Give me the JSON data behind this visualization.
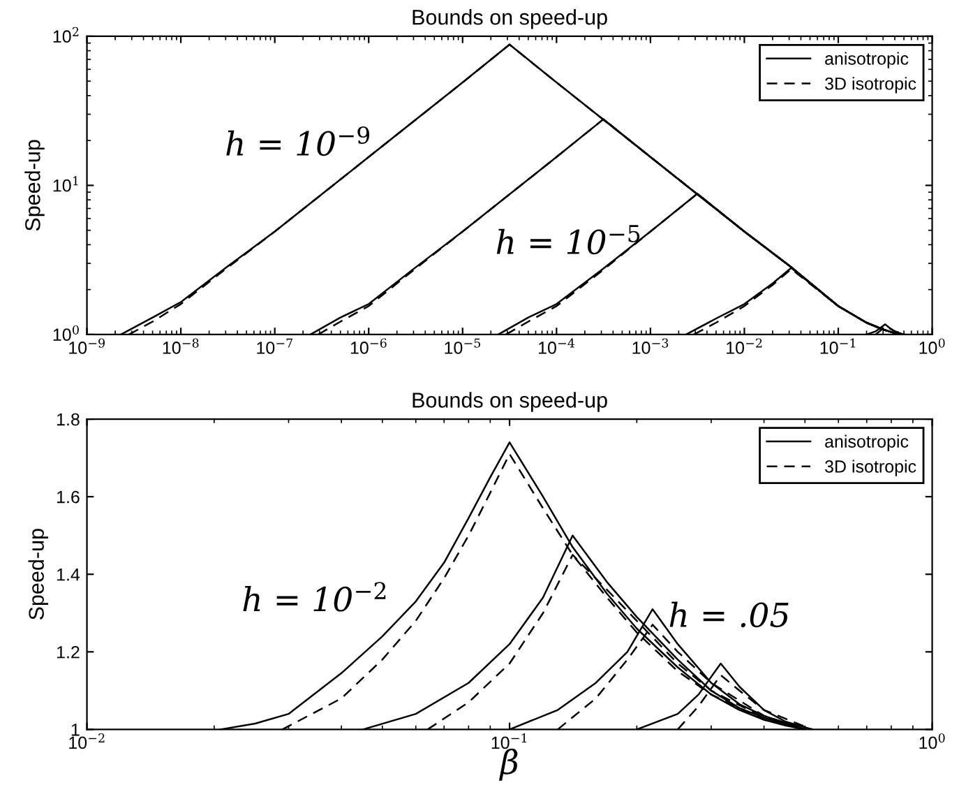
{
  "chart_data": [
    {
      "type": "line",
      "title": "Bounds on speed-up",
      "ylabel": "Speed-up",
      "log": "xy",
      "legend": "top right",
      "xlim": [
        1e-09,
        1
      ],
      "ylim": [
        1,
        100
      ],
      "xticks": [
        {
          "value": 1e-09,
          "label": "10$^{−9}$"
        },
        {
          "value": 1e-08,
          "label": "10$^{−8}$"
        },
        {
          "value": 1e-07,
          "label": "10$^{−7}$"
        },
        {
          "value": 1e-06,
          "label": "10$^{−6}$"
        },
        {
          "value": 1e-05,
          "label": "10$^{−5}$"
        },
        {
          "value": 0.0001,
          "label": "10$^{−4}$"
        },
        {
          "value": 0.001,
          "label": "10$^{−3}$"
        },
        {
          "value": 0.01,
          "label": "10$^{−2}$"
        },
        {
          "value": 0.1,
          "label": "10$^{−1}$"
        },
        {
          "value": 1,
          "label": "10$^{0}$"
        }
      ],
      "yticks": [
        {
          "value": 1,
          "label": "10$^{0}$"
        },
        {
          "value": 10,
          "label": "10$^{1}$"
        },
        {
          "value": 100,
          "label": "10$^{2}$"
        }
      ],
      "annotations": [
        "h = 10$^{−9}$",
        "h = 10$^{−5}$"
      ],
      "series": [
        {
          "name": "anisotropic",
          "color": "#000000",
          "line_style": "solid",
          "x": [
            2.3e-09,
            5e-09,
            1e-08,
            3e-08,
            1e-07,
            1e-06,
            1e-05,
            3.16e-05,
            0.0001,
            0.001,
            0.01,
            0.03,
            0.1,
            0.2,
            0.3,
            0.4,
            0.5
          ],
          "values": [
            1,
            1.3,
            1.65,
            2.8,
            4.9,
            15.5,
            49,
            88,
            49,
            15.5,
            4.9,
            2.9,
            1.55,
            1.2,
            1.08,
            1.02,
            1
          ]
        },
        {
          "name": "3D isotropic",
          "color": "#000000",
          "line_style": "dashed",
          "x": [
            2.8e-09,
            5e-09,
            1e-08,
            3e-08,
            1e-07,
            1e-06,
            1e-05,
            3.16e-05,
            0.0001,
            0.001,
            0.01,
            0.03,
            0.1,
            0.2,
            0.3,
            0.4,
            0.5
          ],
          "values": [
            1,
            1.22,
            1.6,
            2.75,
            4.9,
            15.5,
            49,
            88,
            49,
            15.5,
            4.9,
            2.9,
            1.55,
            1.2,
            1.08,
            1.02,
            1
          ]
        },
        {
          "color": "#000000",
          "line_style": "solid",
          "x": [
            2.4e-07,
            5e-07,
            1e-06,
            3e-06,
            1e-05,
            0.0001,
            0.000316,
            0.001,
            0.01,
            0.03,
            0.1,
            0.2,
            0.3,
            0.4,
            0.5
          ],
          "values": [
            1,
            1.3,
            1.6,
            2.75,
            4.9,
            15.5,
            27.8,
            15.5,
            4.9,
            2.9,
            1.55,
            1.2,
            1.08,
            1.02,
            1
          ]
        },
        {
          "color": "#000000",
          "line_style": "dashed",
          "x": [
            2.9e-07,
            5e-07,
            1e-06,
            3e-06,
            1e-05,
            0.0001,
            0.000316,
            0.001,
            0.01,
            0.03,
            0.1,
            0.2,
            0.3,
            0.4,
            0.5
          ],
          "values": [
            1,
            1.22,
            1.55,
            2.7,
            4.9,
            15.5,
            27.8,
            15.5,
            4.9,
            2.9,
            1.55,
            1.2,
            1.08,
            1.02,
            1
          ]
        },
        {
          "color": "#000000",
          "line_style": "solid",
          "x": [
            2.4e-05,
            5e-05,
            0.0001,
            0.0003,
            0.001,
            0.00316,
            0.01,
            0.03,
            0.1,
            0.2,
            0.3,
            0.4,
            0.5
          ],
          "values": [
            1,
            1.3,
            1.6,
            2.7,
            4.9,
            8.8,
            4.9,
            2.9,
            1.55,
            1.2,
            1.08,
            1.02,
            1
          ]
        },
        {
          "color": "#000000",
          "line_style": "dashed",
          "x": [
            2.9e-05,
            5e-05,
            0.0001,
            0.0003,
            0.001,
            0.00316,
            0.01,
            0.03,
            0.1,
            0.2,
            0.3,
            0.4,
            0.5
          ],
          "values": [
            1,
            1.22,
            1.55,
            2.65,
            4.9,
            8.8,
            4.9,
            2.9,
            1.55,
            1.2,
            1.08,
            1.02,
            1
          ]
        },
        {
          "color": "#000000",
          "line_style": "solid",
          "x": [
            0.0024,
            0.005,
            0.01,
            0.02,
            0.0316,
            0.1,
            0.2,
            0.3,
            0.4,
            0.5
          ],
          "values": [
            1,
            1.28,
            1.6,
            2.2,
            2.8,
            1.55,
            1.2,
            1.08,
            1.02,
            1
          ]
        },
        {
          "color": "#000000",
          "line_style": "dashed",
          "x": [
            0.0029,
            0.005,
            0.01,
            0.02,
            0.0316,
            0.1,
            0.2,
            0.3,
            0.4,
            0.5
          ],
          "values": [
            1,
            1.2,
            1.55,
            2.15,
            2.75,
            1.55,
            1.2,
            1.08,
            1.02,
            1
          ]
        },
        {
          "color": "#000000",
          "line_style": "solid",
          "x": [
            0.2,
            0.25,
            0.316,
            0.35,
            0.4,
            0.5
          ],
          "values": [
            1,
            1.05,
            1.17,
            1.11,
            1.05,
            1
          ]
        },
        {
          "color": "#000000",
          "line_style": "dashed",
          "x": [
            0.25,
            0.28,
            0.316,
            0.35,
            0.4,
            0.52
          ],
          "values": [
            1,
            1.06,
            1.14,
            1.1,
            1.05,
            1
          ]
        }
      ]
    },
    {
      "type": "line",
      "title": "Bounds on speed-up",
      "ylabel": "Speed-up",
      "xlabel": "β",
      "log": "x",
      "legend": "top right",
      "xlim": [
        0.01,
        1
      ],
      "ylim": [
        1,
        1.8
      ],
      "xticks": [
        {
          "value": 0.01,
          "label": "10$^{−2}$"
        },
        {
          "value": 0.1,
          "label": "10$^{−1}$"
        },
        {
          "value": 1,
          "label": "10$^{0}$"
        }
      ],
      "yticks": [
        1,
        1.2,
        1.4,
        1.6,
        1.8
      ],
      "annotations": [
        "h = 10$^{−2}$",
        "h = .05"
      ],
      "series": [
        {
          "name": "anisotropic",
          "color": "#000000",
          "line_style": "solid",
          "x": [
            0.0207,
            0.025,
            0.03,
            0.04,
            0.05,
            0.06,
            0.07,
            0.08,
            0.09,
            0.1,
            0.12,
            0.141,
            0.17,
            0.2,
            0.25,
            0.3,
            0.35,
            0.4,
            0.45,
            0.5
          ],
          "values": [
            1,
            1.015,
            1.04,
            1.145,
            1.24,
            1.33,
            1.43,
            1.545,
            1.65,
            1.74,
            1.6,
            1.47,
            1.35,
            1.26,
            1.16,
            1.09,
            1.05,
            1.025,
            1.01,
            1
          ]
        },
        {
          "name": "3D isotropic",
          "color": "#000000",
          "line_style": "dashed",
          "x": [
            0.029,
            0.04,
            0.05,
            0.06,
            0.07,
            0.08,
            0.09,
            0.1,
            0.12,
            0.141,
            0.17,
            0.2,
            0.25,
            0.3,
            0.4,
            0.5
          ],
          "values": [
            1,
            1.08,
            1.18,
            1.28,
            1.39,
            1.5,
            1.61,
            1.71,
            1.57,
            1.45,
            1.34,
            1.25,
            1.15,
            1.09,
            1.025,
            1
          ]
        },
        {
          "color": "#000000",
          "line_style": "solid",
          "x": [
            0.045,
            0.06,
            0.08,
            0.1,
            0.12,
            0.141,
            0.17,
            0.2,
            0.25,
            0.3,
            0.35,
            0.4,
            0.5
          ],
          "values": [
            1,
            1.04,
            1.12,
            1.22,
            1.34,
            1.5,
            1.38,
            1.29,
            1.18,
            1.1,
            1.055,
            1.03,
            1
          ]
        },
        {
          "color": "#000000",
          "line_style": "dashed",
          "x": [
            0.064,
            0.08,
            0.1,
            0.12,
            0.141,
            0.17,
            0.2,
            0.25,
            0.3,
            0.4,
            0.5
          ],
          "values": [
            1,
            1.07,
            1.17,
            1.3,
            1.45,
            1.36,
            1.28,
            1.17,
            1.1,
            1.03,
            1
          ]
        },
        {
          "color": "#000000",
          "line_style": "solid",
          "x": [
            0.1,
            0.13,
            0.16,
            0.19,
            0.218,
            0.25,
            0.3,
            0.35,
            0.4,
            0.5
          ],
          "values": [
            1,
            1.05,
            1.12,
            1.2,
            1.31,
            1.22,
            1.12,
            1.065,
            1.035,
            1
          ]
        },
        {
          "color": "#000000",
          "line_style": "dashed",
          "x": [
            0.13,
            0.16,
            0.19,
            0.218,
            0.25,
            0.3,
            0.4,
            0.5
          ],
          "values": [
            1,
            1.08,
            1.18,
            1.27,
            1.2,
            1.12,
            1.035,
            1
          ]
        },
        {
          "color": "#000000",
          "line_style": "solid",
          "x": [
            0.2,
            0.25,
            0.28,
            0.316,
            0.35,
            0.4,
            0.45,
            0.52
          ],
          "values": [
            1,
            1.04,
            1.09,
            1.17,
            1.11,
            1.05,
            1.02,
            1
          ]
        },
        {
          "color": "#000000",
          "line_style": "dashed",
          "x": [
            0.25,
            0.28,
            0.316,
            0.35,
            0.4,
            0.52
          ],
          "values": [
            1,
            1.06,
            1.14,
            1.1,
            1.05,
            1
          ]
        }
      ]
    }
  ]
}
